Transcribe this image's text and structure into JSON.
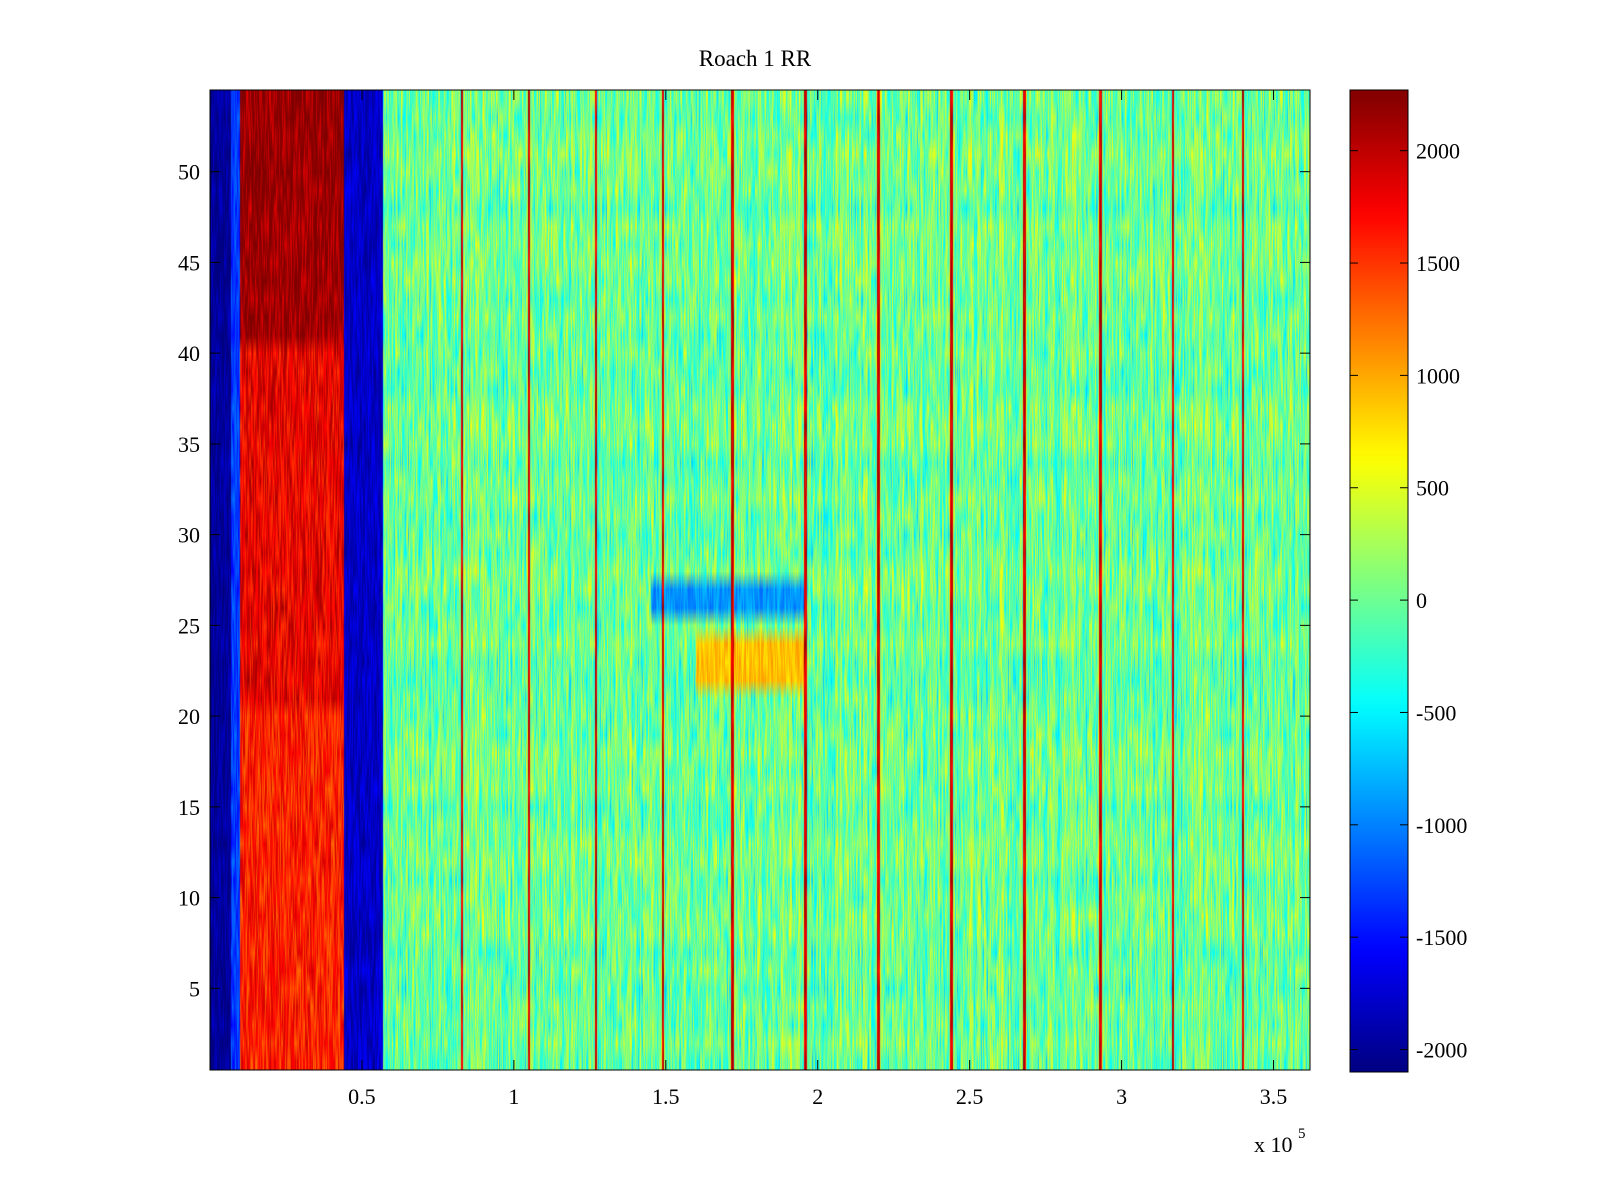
{
  "chart_data": {
    "type": "heatmap",
    "title": "Roach 1 RR",
    "xlabel": "",
    "ylabel": "",
    "colormap": "jet",
    "x_multiplier_label": "x 10",
    "x_multiplier_exponent": "5",
    "xlim": [
      0,
      3.62
    ],
    "ylim": [
      0.5,
      54.5
    ],
    "x_ticks": [
      0.5,
      1,
      1.5,
      2,
      2.5,
      3,
      3.5
    ],
    "x_tick_labels": [
      "0.5",
      "1",
      "1.5",
      "2",
      "2.5",
      "3",
      "3.5"
    ],
    "y_ticks": [
      5,
      10,
      15,
      20,
      25,
      30,
      35,
      40,
      45,
      50
    ],
    "y_tick_labels": [
      "5",
      "10",
      "15",
      "20",
      "25",
      "30",
      "35",
      "40",
      "45",
      "50"
    ],
    "n_rows": 54,
    "clim": [
      -2100,
      2270
    ],
    "colorbar_ticks": [
      2000,
      1500,
      1000,
      500,
      0,
      -500,
      -1000,
      -1500,
      -2000
    ],
    "colorbar_tick_labels": [
      "2000",
      "1500",
      "1000",
      "500",
      "0",
      "-500",
      "-1000",
      "-1500",
      "-2000"
    ],
    "column_bands": [
      {
        "x_start": 0.0,
        "x_end": 0.07,
        "value": -2000,
        "description": "low band"
      },
      {
        "x_start": 0.07,
        "x_end": 0.1,
        "value": -1300,
        "description": "transition"
      },
      {
        "x_start": 0.1,
        "x_end": 0.44,
        "value": 1800,
        "description": "high band"
      },
      {
        "x_start": 0.44,
        "x_end": 0.57,
        "value": -1800,
        "description": "low band"
      },
      {
        "x_start": 0.57,
        "x_end": 3.62,
        "value": 0,
        "description": "noisy band around 0"
      }
    ],
    "high_band_rows": [
      {
        "y_start": 40.5,
        "y_end": 54.5,
        "value": 2200
      },
      {
        "y_start": 20.5,
        "y_end": 40.5,
        "value": 1800
      },
      {
        "y_start": 0.5,
        "y_end": 20.5,
        "value": 1600
      }
    ],
    "vertical_spikes_x": [
      0.83,
      1.05,
      1.27,
      1.49,
      1.72,
      1.96,
      2.2,
      2.44,
      2.68,
      2.93,
      3.17,
      3.4
    ],
    "vertical_spike_value": 2200,
    "anomalies": [
      {
        "x_start": 1.45,
        "x_end": 1.96,
        "y_start": 25.5,
        "y_end": 27.5,
        "value": -900
      },
      {
        "x_start": 1.6,
        "x_end": 1.96,
        "y_start": 21.5,
        "y_end": 24.5,
        "value": 900
      }
    ]
  }
}
